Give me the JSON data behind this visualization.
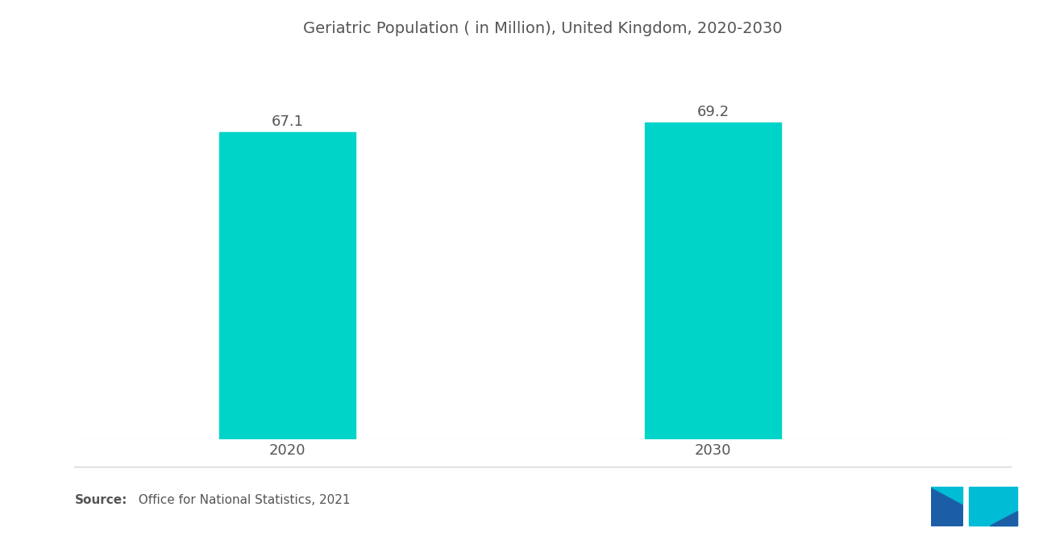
{
  "title": "Geriatric Population ( in Million), United Kingdom, 2020-2030",
  "categories": [
    "2020",
    "2030"
  ],
  "values": [
    67.1,
    69.2
  ],
  "bar_color": "#00D4C8",
  "bar_width": 0.32,
  "x_positions": [
    1,
    2
  ],
  "xlim": [
    0.5,
    2.7
  ],
  "ylim": [
    0,
    82
  ],
  "value_labels": [
    "67.1",
    "69.2"
  ],
  "source_bold": "Source:",
  "source_rest": "  Office for National Statistics, 2021",
  "title_fontsize": 14,
  "tick_fontsize": 13,
  "value_fontsize": 13,
  "source_fontsize": 11,
  "background_color": "#ffffff",
  "text_color": "#555555",
  "axis_line_color": "#cccccc"
}
